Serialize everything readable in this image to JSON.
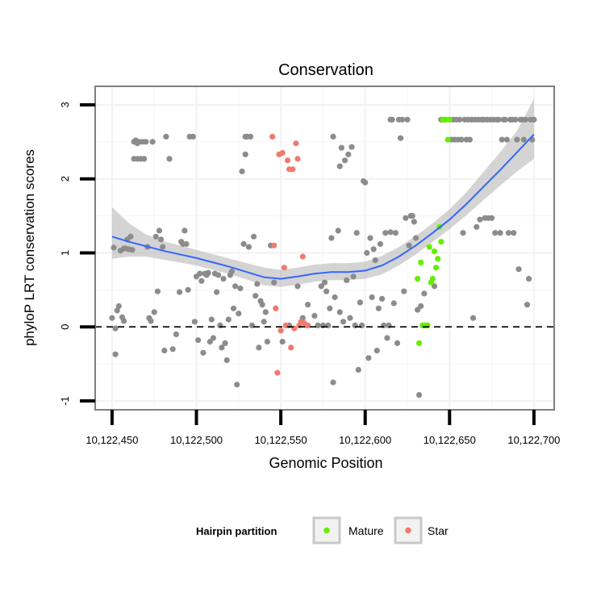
{
  "chart_data": {
    "type": "scatter",
    "title": "Conservation",
    "xlabel": "Genomic Position",
    "ylabel": "phyloP LRT conservation scores",
    "xlim": [
      10122440,
      10122712
    ],
    "ylim": [
      -1.12,
      3.25
    ],
    "x_ticks": [
      10122450,
      10122500,
      10122550,
      10122600,
      10122650,
      10122700
    ],
    "x_tick_labels": [
      "10,122,450",
      "10,122,500",
      "10,122,550",
      "10,122,600",
      "10,122,650",
      "10,122,700"
    ],
    "y_ticks": [
      -1,
      0,
      1,
      2,
      3
    ],
    "y_tick_labels": [
      "-1",
      "0",
      "1",
      "2",
      "3"
    ],
    "grid": true,
    "reference_line": {
      "y": 0,
      "style": "dashed"
    },
    "legend": {
      "title": "Hairpin partition",
      "position": "bottom",
      "entries": [
        {
          "name": "Mature",
          "color": "#66ee00"
        },
        {
          "name": "Star",
          "color": "#f07a70"
        }
      ]
    },
    "colors": {
      "background": "#ebebeb",
      "other_points": "#8c8c8c",
      "mature": "#66ee00",
      "star": "#f07a70",
      "smooth": "#3366ff",
      "ribbon": "#b0b0b0"
    },
    "smooth_line": {
      "x": [
        10122450,
        10122460,
        10122470,
        10122480,
        10122490,
        10122500,
        10122510,
        10122520,
        10122530,
        10122540,
        10122550,
        10122560,
        10122570,
        10122580,
        10122590,
        10122600,
        10122610,
        10122620,
        10122630,
        10122640,
        10122650,
        10122660,
        10122670,
        10122680,
        10122690,
        10122700
      ],
      "y": [
        1.22,
        1.15,
        1.09,
        1.03,
        0.98,
        0.93,
        0.87,
        0.81,
        0.74,
        0.67,
        0.65,
        0.68,
        0.72,
        0.74,
        0.74,
        0.76,
        0.83,
        0.95,
        1.1,
        1.27,
        1.45,
        1.66,
        1.89,
        2.12,
        2.36,
        2.6
      ],
      "lower": [
        0.92,
        0.95,
        0.95,
        0.91,
        0.87,
        0.83,
        0.77,
        0.71,
        0.64,
        0.56,
        0.54,
        0.57,
        0.61,
        0.63,
        0.63,
        0.65,
        0.71,
        0.83,
        0.98,
        1.15,
        1.32,
        1.51,
        1.71,
        1.91,
        2.1,
        2.27
      ],
      "upper": [
        1.62,
        1.4,
        1.25,
        1.16,
        1.1,
        1.04,
        0.98,
        0.92,
        0.86,
        0.8,
        0.77,
        0.8,
        0.84,
        0.86,
        0.86,
        0.88,
        0.96,
        1.08,
        1.23,
        1.4,
        1.59,
        1.82,
        2.09,
        2.36,
        2.65,
        3.08
      ]
    },
    "series": [
      {
        "name": "Other",
        "points": [
          [
            10122450,
            0.12
          ],
          [
            10122451,
            1.07
          ],
          [
            10122452,
            -0.02
          ],
          [
            10122452,
            -0.37
          ],
          [
            10122453,
            0.22
          ],
          [
            10122454,
            0.28
          ],
          [
            10122455,
            1.03
          ],
          [
            10122456,
            0.13
          ],
          [
            10122457,
            1.06
          ],
          [
            10122457,
            0.08
          ],
          [
            10122458,
            1.06
          ],
          [
            10122459,
            1.18
          ],
          [
            10122460,
            1.05
          ],
          [
            10122461,
            1.22
          ],
          [
            10122462,
            1.04
          ],
          [
            10122463,
            2.27
          ],
          [
            10122463,
            2.5
          ],
          [
            10122464,
            2.52
          ],
          [
            10122465,
            2.27
          ],
          [
            10122465,
            2.48
          ],
          [
            10122466,
            2.5
          ],
          [
            10122467,
            2.27
          ],
          [
            10122468,
            2.5
          ],
          [
            10122469,
            2.27
          ],
          [
            10122470,
            2.5
          ],
          [
            10122471,
            1.08
          ],
          [
            10122472,
            0.12
          ],
          [
            10122473,
            0.08
          ],
          [
            10122474,
            2.5
          ],
          [
            10122475,
            0.2
          ],
          [
            10122476,
            1.22
          ],
          [
            10122477,
            0.48
          ],
          [
            10122478,
            1.3
          ],
          [
            10122479,
            1.18
          ],
          [
            10122480,
            1.08
          ],
          [
            10122481,
            -0.32
          ],
          [
            10122482,
            2.57
          ],
          [
            10122484,
            2.27
          ],
          [
            10122486,
            -0.3
          ],
          [
            10122488,
            -0.1
          ],
          [
            10122490,
            0.47
          ],
          [
            10122491,
            1.15
          ],
          [
            10122492,
            1.12
          ],
          [
            10122493,
            1.3
          ],
          [
            10122494,
            1.12
          ],
          [
            10122495,
            0.5
          ],
          [
            10122496,
            2.57
          ],
          [
            10122498,
            2.57
          ],
          [
            10122499,
            0.07
          ],
          [
            10122500,
            0.68
          ],
          [
            10122501,
            -0.18
          ],
          [
            10122502,
            0.72
          ],
          [
            10122503,
            0.62
          ],
          [
            10122504,
            -0.35
          ],
          [
            10122505,
            0.72
          ],
          [
            10122506,
            0.7
          ],
          [
            10122507,
            0.73
          ],
          [
            10122508,
            -0.2
          ],
          [
            10122509,
            0.1
          ],
          [
            10122510,
            -0.15
          ],
          [
            10122511,
            0.72
          ],
          [
            10122512,
            0.47
          ],
          [
            10122513,
            0.7
          ],
          [
            10122514,
            0.02
          ],
          [
            10122515,
            -0.28
          ],
          [
            10122516,
            0.65
          ],
          [
            10122517,
            -0.22
          ],
          [
            10122518,
            -0.45
          ],
          [
            10122519,
            0.1
          ],
          [
            10122520,
            0.7
          ],
          [
            10122521,
            0.75
          ],
          [
            10122522,
            0.25
          ],
          [
            10122523,
            0.55
          ],
          [
            10122524,
            -0.78
          ],
          [
            10122525,
            0.18
          ],
          [
            10122526,
            0.52
          ],
          [
            10122527,
            2.1
          ],
          [
            10122528,
            1.12
          ],
          [
            10122529,
            2.57
          ],
          [
            10122529,
            2.33
          ],
          [
            10122530,
            2.57
          ],
          [
            10122531,
            1.08
          ],
          [
            10122532,
            2.57
          ],
          [
            10122533,
            0.02
          ],
          [
            10122534,
            1.22
          ],
          [
            10122535,
            0.42
          ],
          [
            10122536,
            0.58
          ],
          [
            10122537,
            -0.28
          ],
          [
            10122538,
            0.35
          ],
          [
            10122539,
            0.3
          ],
          [
            10122540,
            0.07
          ],
          [
            10122541,
            0.2
          ],
          [
            10122542,
            -0.2
          ],
          [
            10122544,
            1.1
          ],
          [
            10122546,
            0.6
          ],
          [
            10122551,
            -0.2
          ],
          [
            10122555,
            0.02
          ],
          [
            10122560,
            0.55
          ],
          [
            10122563,
            0.12
          ],
          [
            10122566,
            0.3
          ],
          [
            10122570,
            0.15
          ],
          [
            10122572,
            0.02
          ],
          [
            10122574,
            0.55
          ],
          [
            10122575,
            0.02
          ],
          [
            10122576,
            0.6
          ],
          [
            10122577,
            0.48
          ],
          [
            10122578,
            0.02
          ],
          [
            10122579,
            0.25
          ],
          [
            10122580,
            1.2
          ],
          [
            10122581,
            -0.75
          ],
          [
            10122581,
            2.57
          ],
          [
            10122582,
            0.4
          ],
          [
            10122584,
            1.3
          ],
          [
            10122585,
            0.2
          ],
          [
            10122585,
            2.17
          ],
          [
            10122586,
            2.42
          ],
          [
            10122587,
            0.07
          ],
          [
            10122588,
            2.25
          ],
          [
            10122589,
            0.63
          ],
          [
            10122590,
            2.33
          ],
          [
            10122591,
            0.12
          ],
          [
            10122592,
            2.43
          ],
          [
            10122593,
            0.68
          ],
          [
            10122594,
            0.02
          ],
          [
            10122595,
            1.27
          ],
          [
            10122596,
            -0.58
          ],
          [
            10122597,
            0.33
          ],
          [
            10122598,
            0.02
          ],
          [
            10122599,
            1.97
          ],
          [
            10122600,
            1.95
          ],
          [
            10122601,
            1.0
          ],
          [
            10122602,
            -0.42
          ],
          [
            10122603,
            1.2
          ],
          [
            10122604,
            0.4
          ],
          [
            10122605,
            1.05
          ],
          [
            10122606,
            0.9
          ],
          [
            10122607,
            -0.32
          ],
          [
            10122608,
            0.25
          ],
          [
            10122609,
            1.12
          ],
          [
            10122610,
            0.38
          ],
          [
            10122611,
            0.02
          ],
          [
            10122612,
            1.27
          ],
          [
            10122613,
            -0.15
          ],
          [
            10122614,
            0.02
          ],
          [
            10122615,
            1.28
          ],
          [
            10122615,
            2.8
          ],
          [
            10122616,
            2.8
          ],
          [
            10122617,
            0.32
          ],
          [
            10122618,
            1.27
          ],
          [
            10122619,
            -0.22
          ],
          [
            10122620,
            2.8
          ],
          [
            10122621,
            2.55
          ],
          [
            10122622,
            2.8
          ],
          [
            10122623,
            0.48
          ],
          [
            10122624,
            1.47
          ],
          [
            10122625,
            2.8
          ],
          [
            10122626,
            1.1
          ],
          [
            10122627,
            1.5
          ],
          [
            10122628,
            1.5
          ],
          [
            10122629,
            1.42
          ],
          [
            10122630,
            1.2
          ],
          [
            10122631,
            0.23
          ],
          [
            10122632,
            -0.92
          ],
          [
            10122633,
            0.28
          ],
          [
            10122635,
            0.45
          ],
          [
            10122641,
            0.55
          ],
          [
            10122645,
            2.8
          ],
          [
            10122647,
            2.8
          ],
          [
            10122650,
            2.8
          ],
          [
            10122651,
            2.53
          ],
          [
            10122652,
            2.8
          ],
          [
            10122653,
            2.53
          ],
          [
            10122654,
            2.8
          ],
          [
            10122655,
            2.53
          ],
          [
            10122656,
            2.8
          ],
          [
            10122657,
            2.53
          ],
          [
            10122658,
            1.27
          ],
          [
            10122659,
            2.8
          ],
          [
            10122660,
            2.53
          ],
          [
            10122661,
            2.8
          ],
          [
            10122662,
            2.53
          ],
          [
            10122663,
            2.8
          ],
          [
            10122664,
            0.12
          ],
          [
            10122665,
            2.8
          ],
          [
            10122666,
            1.35
          ],
          [
            10122667,
            2.8
          ],
          [
            10122668,
            1.45
          ],
          [
            10122669,
            2.8
          ],
          [
            10122670,
            2.8
          ],
          [
            10122671,
            1.47
          ],
          [
            10122672,
            2.8
          ],
          [
            10122673,
            1.47
          ],
          [
            10122674,
            2.8
          ],
          [
            10122675,
            1.47
          ],
          [
            10122676,
            2.8
          ],
          [
            10122677,
            1.27
          ],
          [
            10122678,
            2.8
          ],
          [
            10122679,
            2.8
          ],
          [
            10122680,
            1.27
          ],
          [
            10122681,
            2.53
          ],
          [
            10122682,
            2.8
          ],
          [
            10122683,
            2.8
          ],
          [
            10122684,
            2.53
          ],
          [
            10122685,
            1.27
          ],
          [
            10122686,
            2.8
          ],
          [
            10122687,
            2.8
          ],
          [
            10122688,
            1.27
          ],
          [
            10122689,
            2.8
          ],
          [
            10122690,
            2.53
          ],
          [
            10122691,
            0.78
          ],
          [
            10122692,
            2.8
          ],
          [
            10122693,
            2.8
          ],
          [
            10122694,
            2.53
          ],
          [
            10122695,
            2.8
          ],
          [
            10122696,
            0.3
          ],
          [
            10122697,
            0.65
          ],
          [
            10122698,
            2.8
          ],
          [
            10122699,
            2.53
          ],
          [
            10122700,
            2.8
          ]
        ]
      },
      {
        "name": "Mature",
        "points": [
          [
            10122631,
            0.65
          ],
          [
            10122632,
            -0.22
          ],
          [
            10122633,
            0.87
          ],
          [
            10122634,
            0.02
          ],
          [
            10122635,
            0.02
          ],
          [
            10122636,
            0.02
          ],
          [
            10122637,
            0.02
          ],
          [
            10122638,
            1.08
          ],
          [
            10122639,
            0.6
          ],
          [
            10122640,
            0.65
          ],
          [
            10122641,
            1.02
          ],
          [
            10122642,
            0.8
          ],
          [
            10122643,
            0.92
          ],
          [
            10122644,
            1.35
          ],
          [
            10122645,
            1.15
          ],
          [
            10122646,
            2.8
          ],
          [
            10122647,
            2.8
          ],
          [
            10122648,
            2.8
          ],
          [
            10122649,
            2.53
          ],
          [
            10122650,
            2.8
          ]
        ]
      },
      {
        "name": "Star",
        "points": [
          [
            10122545,
            2.57
          ],
          [
            10122546,
            1.1
          ],
          [
            10122547,
            0.25
          ],
          [
            10122548,
            -0.62
          ],
          [
            10122549,
            2.33
          ],
          [
            10122550,
            -0.05
          ],
          [
            10122551,
            2.35
          ],
          [
            10122552,
            0.8
          ],
          [
            10122553,
            0.02
          ],
          [
            10122554,
            2.25
          ],
          [
            10122555,
            2.13
          ],
          [
            10122556,
            -0.28
          ],
          [
            10122557,
            2.13
          ],
          [
            10122558,
            -0.02
          ],
          [
            10122559,
            2.48
          ],
          [
            10122560,
            2.27
          ],
          [
            10122561,
            0.02
          ],
          [
            10122562,
            0.07
          ],
          [
            10122563,
            0.95
          ],
          [
            10122564,
            0.05
          ],
          [
            10122565,
            0.02
          ],
          [
            10122566,
            0.02
          ]
        ]
      }
    ]
  }
}
